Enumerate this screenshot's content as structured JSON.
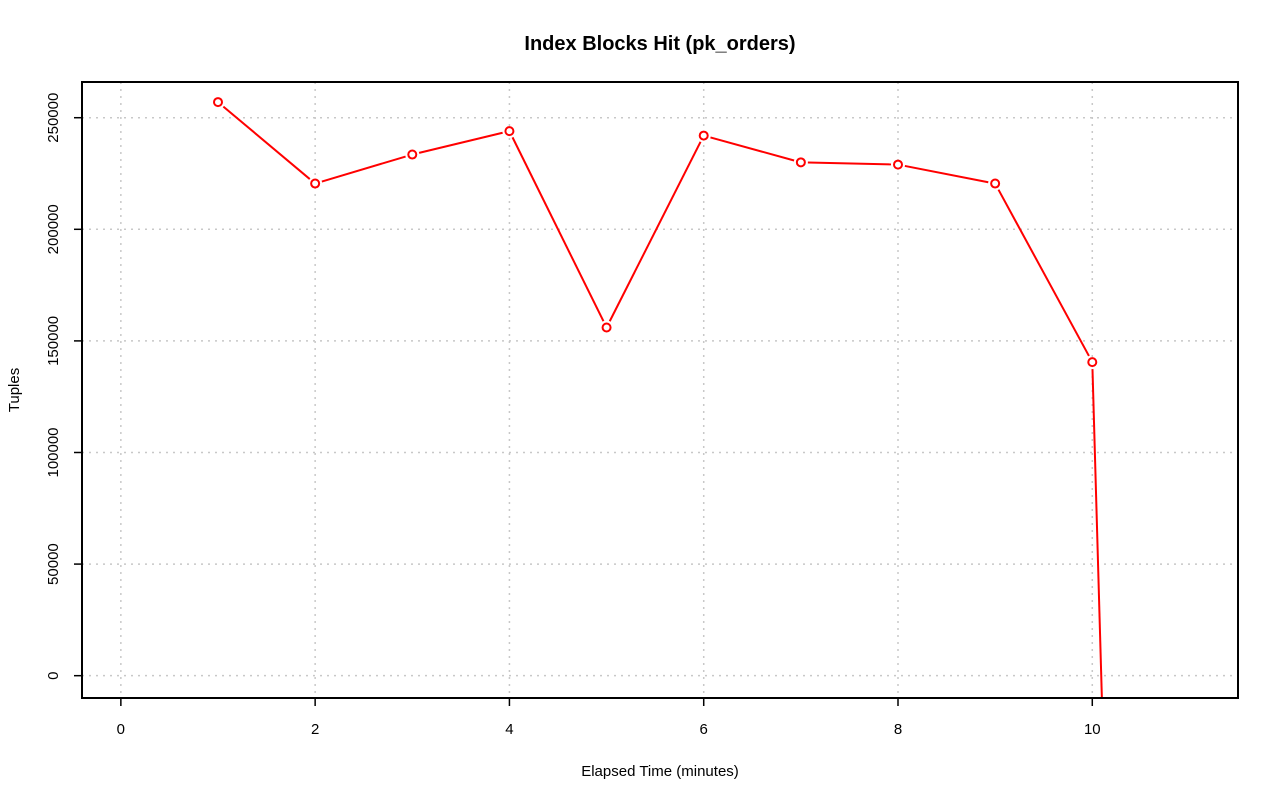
{
  "chart_data": {
    "type": "line",
    "title": "Index Blocks Hit (pk_orders)",
    "xlabel": "Elapsed Time (minutes)",
    "ylabel": "Tuples",
    "xlim": [
      -0.4,
      11.5
    ],
    "ylim": [
      -10000,
      266000
    ],
    "x_ticks": [
      0,
      2,
      4,
      6,
      8,
      10
    ],
    "y_ticks": [
      0,
      50000,
      100000,
      150000,
      200000,
      250000
    ],
    "x_tick_labels": [
      "0",
      "2",
      "4",
      "6",
      "8",
      "10"
    ],
    "y_tick_labels": [
      "0",
      "50000",
      "100000",
      "150000",
      "200000",
      "250000"
    ],
    "grid": true,
    "legend": "none",
    "series": [
      {
        "color": "#ff0000",
        "marker": "open-circle",
        "x": [
          1,
          2,
          3,
          4,
          5,
          6,
          7,
          8,
          9,
          10,
          10.1
        ],
        "y": [
          257000,
          220500,
          233500,
          244000,
          156000,
          242000,
          230000,
          229000,
          220500,
          140500,
          -12000
        ],
        "marked": [
          true,
          true,
          true,
          true,
          true,
          true,
          true,
          true,
          true,
          true,
          false
        ]
      }
    ]
  }
}
